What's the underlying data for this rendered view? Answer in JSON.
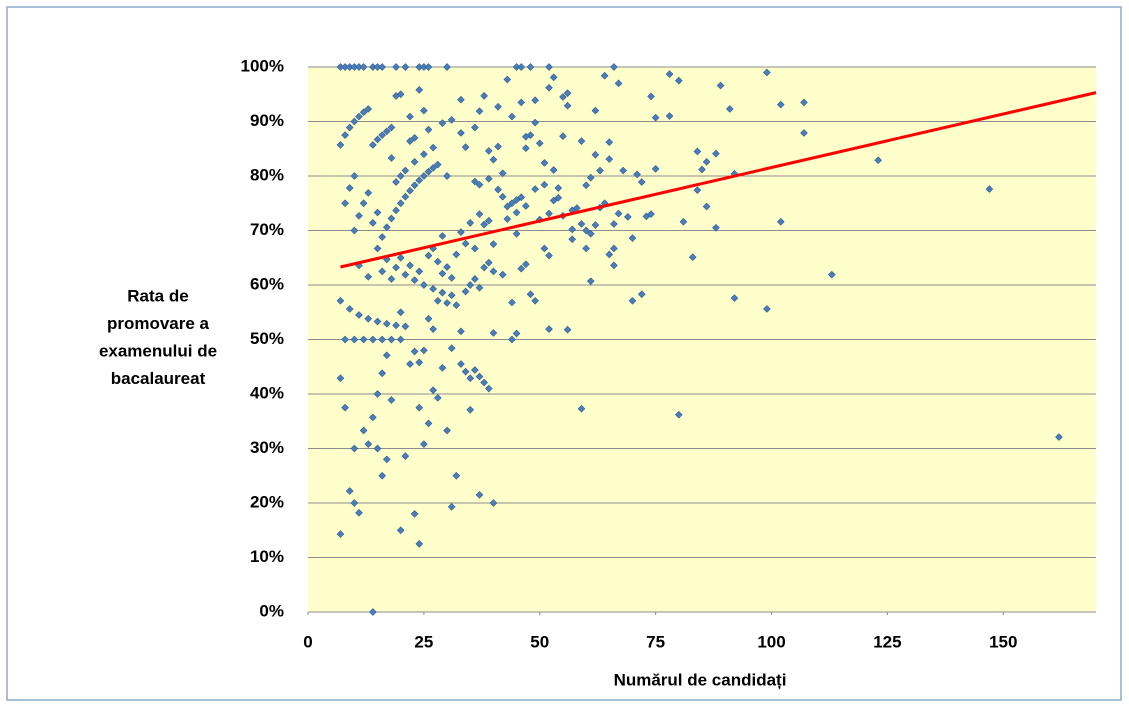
{
  "chart_data": {
    "type": "scatter",
    "xlabel": "Numărul de candidați",
    "ylabel": [
      "Rata de",
      "promovare a",
      "examenului de",
      "bacalaureat"
    ],
    "color": "#4a7ebb",
    "background": "#ffffcc",
    "grid": true,
    "xlim": [
      0,
      170
    ],
    "ylim": [
      0,
      100
    ],
    "xticks": [
      0,
      25,
      50,
      75,
      100,
      125,
      150
    ],
    "yticks": [
      {
        "value": 0,
        "label": "0%"
      },
      {
        "value": 10,
        "label": "10%"
      },
      {
        "value": 20,
        "label": "20%"
      },
      {
        "value": 30,
        "label": "30%"
      },
      {
        "value": 40,
        "label": "40%"
      },
      {
        "value": 50,
        "label": "50%"
      },
      {
        "value": 60,
        "label": "60%"
      },
      {
        "value": 70,
        "label": "70%"
      },
      {
        "value": 80,
        "label": "80%"
      },
      {
        "value": 90,
        "label": "90%"
      },
      {
        "value": 100,
        "label": "100%"
      }
    ],
    "x": [
      7,
      8,
      9,
      10,
      11,
      12,
      14,
      15,
      16,
      19,
      21,
      24,
      25,
      26,
      30,
      45,
      46,
      48,
      52,
      66,
      7,
      14,
      24,
      20,
      16,
      23,
      11,
      9,
      10,
      31,
      37,
      40,
      32,
      30,
      25,
      21,
      15,
      17,
      13,
      10,
      8,
      7,
      7,
      7,
      8,
      9,
      10,
      11,
      12,
      13,
      14,
      15,
      16,
      17,
      18,
      19,
      20,
      21,
      22,
      23,
      24,
      25,
      26,
      27,
      28,
      9,
      10,
      11,
      12,
      13,
      14,
      15,
      16,
      17,
      18,
      19,
      20,
      22,
      23,
      24,
      25,
      26,
      10,
      8,
      9,
      10,
      12,
      14,
      16,
      18,
      20,
      8,
      11,
      13,
      15,
      17,
      19,
      21,
      23,
      24,
      25,
      27,
      28,
      29,
      31,
      33,
      34,
      35,
      36,
      37,
      38,
      39,
      40,
      16,
      18,
      14,
      12,
      15,
      17,
      20,
      22,
      26,
      24,
      26,
      27,
      28,
      30,
      32,
      34,
      35,
      36,
      37,
      38,
      39,
      40,
      31,
      29,
      33,
      35,
      45,
      44,
      48,
      52,
      56,
      59,
      80,
      99,
      92,
      113,
      162,
      147,
      123,
      102,
      107,
      107,
      102,
      99,
      91,
      92,
      89,
      88,
      88,
      86,
      86,
      85,
      84,
      84,
      83,
      81,
      80,
      78,
      78,
      75,
      75,
      74,
      74,
      73,
      72,
      71,
      70,
      72,
      70,
      69,
      67,
      67,
      66,
      66,
      65,
      65,
      64,
      62,
      62,
      63,
      61,
      61,
      60,
      60,
      59,
      59,
      58,
      57,
      56,
      55,
      56,
      55,
      54,
      53,
      53,
      52,
      51,
      52,
      51,
      50,
      50,
      49,
      48,
      47,
      46,
      46,
      45,
      45,
      44,
      43,
      42,
      42,
      41,
      40,
      41,
      40,
      39,
      38,
      37,
      36,
      34,
      33,
      31,
      30,
      29,
      27,
      25,
      23,
      21,
      22,
      20,
      19,
      18,
      17,
      15,
      13,
      11,
      19,
      21,
      23,
      25,
      27,
      29,
      31,
      16,
      18,
      20,
      22,
      24,
      26,
      28,
      30,
      32,
      34,
      36,
      38,
      27,
      29,
      33,
      35,
      37,
      39,
      43,
      45,
      47,
      49,
      51,
      53,
      55,
      57,
      47,
      46,
      42,
      44,
      49,
      52,
      54,
      57,
      60,
      61,
      62,
      63,
      64,
      65,
      66,
      68,
      33,
      36,
      37,
      39,
      41,
      43,
      44,
      47,
      49
    ],
    "values": [
      100,
      100,
      100,
      100,
      100,
      100,
      100,
      100,
      100,
      100,
      100,
      100,
      100,
      100,
      100,
      100,
      100,
      100,
      100,
      100,
      14.3,
      0,
      12.5,
      15,
      25,
      18,
      18.2,
      22.2,
      20,
      19.3,
      21.5,
      20,
      25,
      33.3,
      30.8,
      28.6,
      30,
      28,
      30.8,
      30,
      37.5,
      42.9,
      57.1,
      85.7,
      75,
      77.8,
      70,
      72.7,
      75,
      76.9,
      71.4,
      73.3,
      68.8,
      70.6,
      72.2,
      73.7,
      75,
      76.2,
      77.3,
      78.3,
      79.2,
      80,
      80.8,
      81.5,
      82.1,
      88.9,
      90,
      90.9,
      91.7,
      92.3,
      85.7,
      86.7,
      87.5,
      88.2,
      88.9,
      94.7,
      95,
      86.4,
      87,
      95.8,
      92,
      88.5,
      80,
      87.5,
      55.6,
      50,
      50,
      50,
      50,
      50,
      50,
      50,
      54.5,
      53.8,
      53.3,
      52.9,
      52.6,
      52.4,
      47.8,
      45.8,
      48,
      40.7,
      39.3,
      44.8,
      48.4,
      45.5,
      44.1,
      42.9,
      44.4,
      43.2,
      42.1,
      41,
      51.2,
      43.8,
      38.9,
      35.7,
      33.3,
      40,
      47.1,
      55,
      45.5,
      34.6,
      37.5,
      53.8,
      51.9,
      57.1,
      56.7,
      56.3,
      58.8,
      60,
      61.1,
      59.5,
      63.2,
      64.1,
      62.5,
      61.3,
      62.1,
      51.5,
      37.1,
      51.1,
      50,
      58.3,
      51.9,
      51.8,
      37.3,
      36.2,
      55.6,
      57.6,
      61.9,
      32.1,
      77.6,
      82.9,
      71.6,
      87.9,
      93.5,
      93.1,
      99,
      92.3,
      80.4,
      96.6,
      70.5,
      84.1,
      82.6,
      74.4,
      81.2,
      84.5,
      77.4,
      65.1,
      71.6,
      97.5,
      98.7,
      91,
      90.7,
      81.3,
      94.6,
      73,
      72.6,
      58.3,
      80.3,
      57.1,
      78.9,
      68.6,
      72.5,
      97,
      73.1,
      71.2,
      63.6,
      65.6,
      83.1,
      98.4,
      92,
      83.9,
      74.2,
      60.7,
      79.7,
      70,
      66.7,
      86.4,
      71.2,
      74.1,
      68.4,
      95.2,
      94.5,
      92.9,
      87.3,
      76,
      81.1,
      98.1,
      96.2,
      82.4,
      65.4,
      66.7,
      72,
      86,
      89.8,
      87.5,
      85.1,
      93.5,
      76.1,
      73.3,
      69.4,
      75,
      72.1,
      76.2,
      80.5,
      77.5,
      67.5,
      85.4,
      83,
      84.6,
      94.7,
      91.9,
      88.9,
      85.3,
      87.9,
      90.3,
      80,
      89.7,
      85.2,
      84,
      82.6,
      81,
      90.9,
      80,
      78.9,
      83.3,
      64.7,
      66.7,
      61.5,
      63.6,
      63.2,
      61.9,
      60.9,
      60,
      59.3,
      58.6,
      58.1,
      62.5,
      61.1,
      65,
      63.6,
      62.5,
      65.4,
      64.3,
      63.3,
      65.6,
      67.6,
      66.7,
      71.1,
      66.7,
      69,
      69.7,
      71.4,
      73,
      71.8,
      74.4,
      75.6,
      74.5,
      77.6,
      78.4,
      75.5,
      72.7,
      70.2,
      63.8,
      63,
      61.9,
      56.8,
      57.1,
      73.1,
      77.8,
      73.7,
      78.3,
      69.4,
      71,
      81,
      75,
      86.2,
      66.7,
      81,
      94,
      79,
      78.4,
      79.5,
      92.7,
      97.7,
      90.9,
      87.2,
      93.9
    ],
    "trendline": {
      "x": [
        7,
        170
      ],
      "values": [
        63.3,
        95.3
      ],
      "color": "#ff0000"
    }
  }
}
